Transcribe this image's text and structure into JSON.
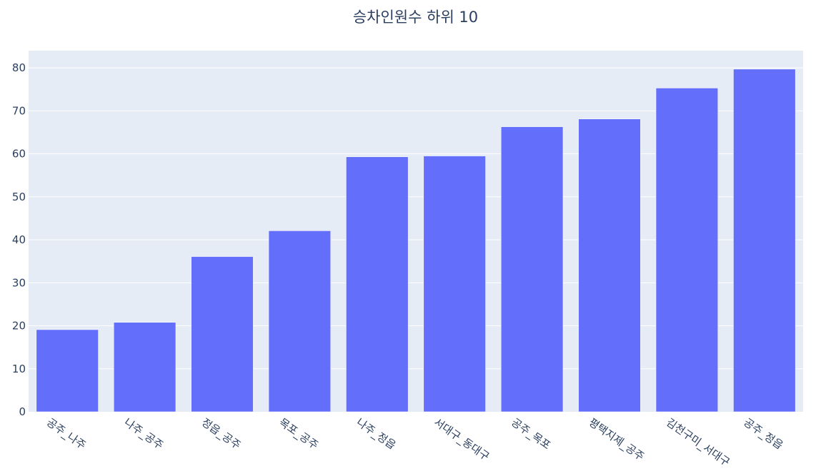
{
  "chart_data": {
    "type": "bar",
    "title": "승차인원수 하위 10",
    "xlabel": "",
    "ylabel": "",
    "categories": [
      "공주_나주",
      "나주_공주",
      "정읍_공주",
      "목포_공주",
      "나주_정읍",
      "서대구_동대구",
      "공주_목포",
      "평택지제_공주",
      "김천구미_서대구",
      "공주_정읍"
    ],
    "values": [
      19.1,
      20.8,
      36.1,
      42.1,
      59.3,
      59.5,
      66.3,
      68.1,
      75.3,
      79.7
    ],
    "ylim": [
      0,
      84
    ],
    "yticks": [
      0,
      10,
      20,
      30,
      40,
      50,
      60,
      70,
      80
    ],
    "grid": true,
    "bar_color": "#636efa",
    "plot_bg": "#e5ecf6"
  }
}
